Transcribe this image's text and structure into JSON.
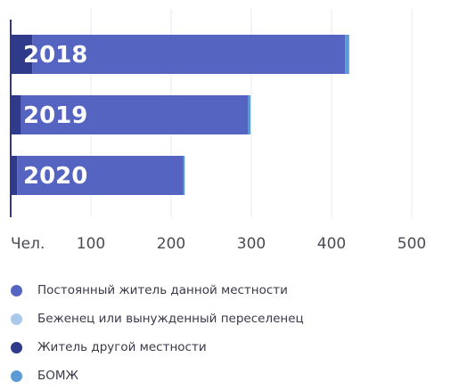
{
  "chart_data": {
    "type": "bar",
    "orientation": "horizontal",
    "stacked": true,
    "categories": [
      "2018",
      "2019",
      "2020"
    ],
    "series": [
      {
        "name": "Житель другой местности",
        "color": "#2f3b8a",
        "values": [
          27,
          13,
          8
        ]
      },
      {
        "name": "Постоянный житель данной местности",
        "color": "#5564c0",
        "values": [
          390,
          283,
          207
        ]
      },
      {
        "name": "Беженец или вынужденный переселенец",
        "color": "#a9c8ea",
        "values": [
          0,
          0,
          0
        ]
      },
      {
        "name": "БОМЖ",
        "color": "#5b9bd5",
        "values": [
          5,
          3,
          2
        ]
      }
    ],
    "x_ticks": [
      "Чел.",
      "100",
      "200",
      "300",
      "400",
      "500"
    ],
    "x_tick_values": [
      0,
      100,
      200,
      300,
      400,
      500
    ],
    "xlim": [
      0,
      500
    ],
    "grid": true,
    "legend_position": "bottom"
  },
  "legend": [
    {
      "label": "Постоянный житель данной местности",
      "color": "#5564c0"
    },
    {
      "label": "Беженец или вынужденный переселенец",
      "color": "#a9c8ea"
    },
    {
      "label": "Житель другой местности",
      "color": "#2f3b8a"
    },
    {
      "label": "БОМЖ",
      "color": "#5b9bd5"
    }
  ]
}
